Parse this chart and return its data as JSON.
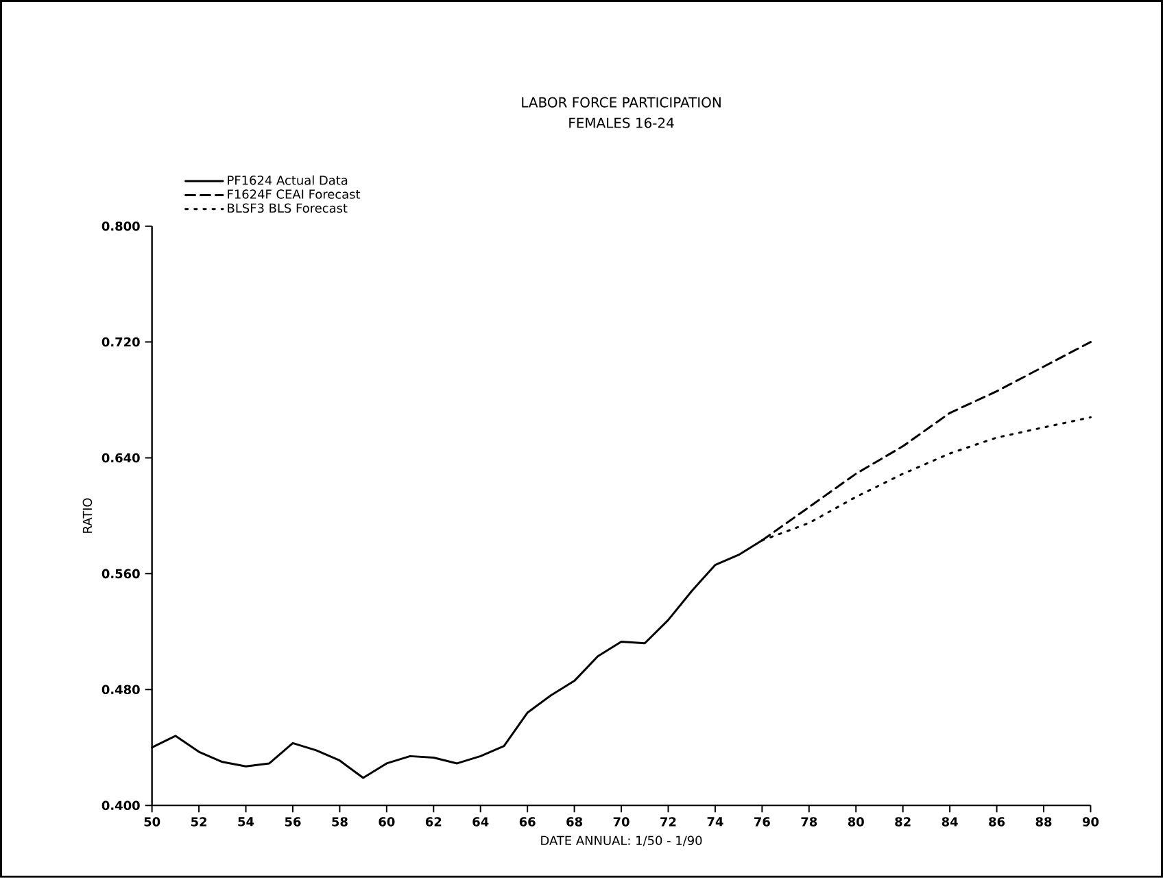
{
  "chart_data": {
    "type": "line",
    "title": "LABOR FORCE PARTICIPATION",
    "subtitle": "FEMALES 16-24",
    "xlabel": "DATE ANNUAL:  1/50 - 1/90",
    "ylabel": "RATIO",
    "xlim": [
      50,
      90
    ],
    "xticks": [
      50,
      52,
      54,
      56,
      58,
      60,
      62,
      64,
      66,
      68,
      70,
      72,
      74,
      76,
      78,
      80,
      82,
      84,
      86,
      88,
      90
    ],
    "ylim": [
      0.4,
      0.8
    ],
    "yticks": [
      {
        "value": 0.4,
        "label": "0.400"
      },
      {
        "value": 0.48,
        "label": "0.480"
      },
      {
        "value": 0.56,
        "label": "0.560"
      },
      {
        "value": 0.64,
        "label": "0.640"
      },
      {
        "value": 0.72,
        "label": "0.720"
      },
      {
        "value": 0.8,
        "label": "0.800"
      }
    ],
    "grid": false,
    "legend": "top left",
    "marker": "none",
    "series": [
      {
        "name": "PF1624 Actual Data",
        "color": "#000000",
        "line_style": "solid",
        "x": [
          50,
          51,
          52,
          53,
          54,
          55,
          56,
          57,
          58,
          59,
          60,
          61,
          62,
          63,
          64,
          65,
          66,
          67,
          68,
          69,
          70,
          71,
          72,
          73,
          74,
          75,
          76
        ],
        "values": [
          0.44,
          0.448,
          0.437,
          0.43,
          0.427,
          0.429,
          0.443,
          0.438,
          0.431,
          0.419,
          0.429,
          0.434,
          0.433,
          0.429,
          0.434,
          0.441,
          0.464,
          0.476,
          0.486,
          0.503,
          0.513,
          0.512,
          0.528,
          0.548,
          0.566,
          0.573,
          0.583
        ]
      },
      {
        "name": "F1624F CEAI Forecast",
        "color": "#000000",
        "line_style": "dashed",
        "x": [
          76,
          78,
          80,
          82,
          84,
          86,
          88,
          90
        ],
        "values": [
          0.583,
          0.606,
          0.629,
          0.648,
          0.671,
          0.686,
          0.703,
          0.72
        ]
      },
      {
        "name": "BLSF3 BLS Forecast",
        "color": "#000000",
        "line_style": "dotted",
        "x": [
          76,
          78,
          80,
          82,
          84,
          86,
          88,
          90
        ],
        "values": [
          0.583,
          0.595,
          0.613,
          0.629,
          0.643,
          0.654,
          0.661,
          0.668
        ]
      }
    ]
  }
}
